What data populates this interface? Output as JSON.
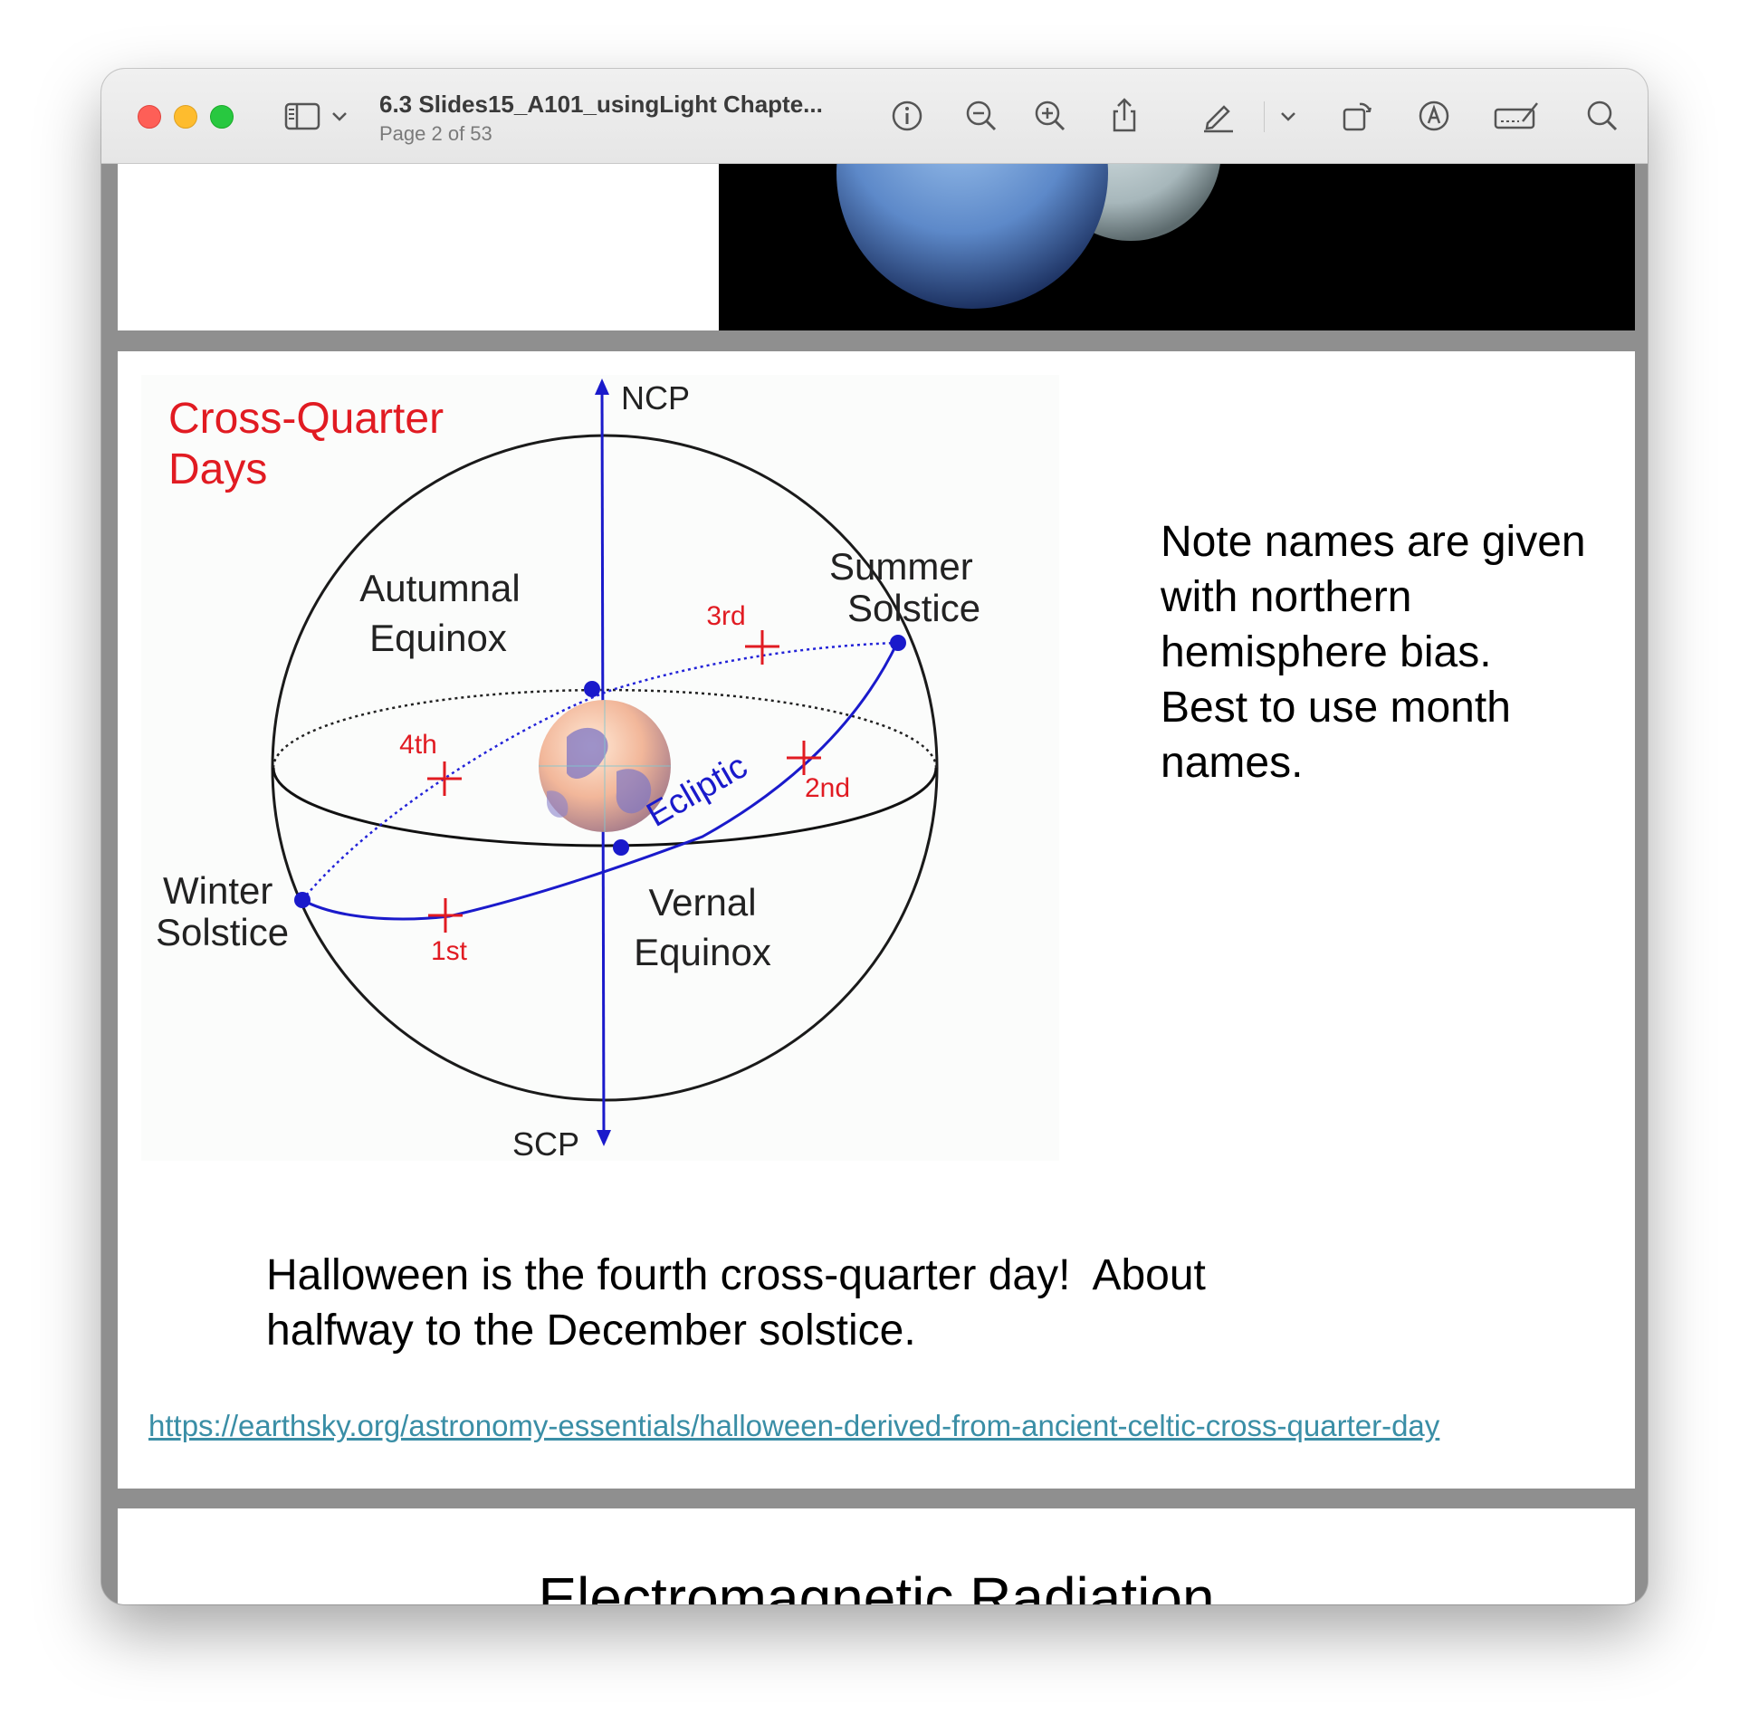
{
  "window": {
    "title": "6.3 Slides15_A101_usingLight Chapte...",
    "page_indicator": "Page 2 of 53"
  },
  "toolbar": {
    "icons": [
      "sidebar-icon",
      "chevron-down-icon",
      "info-icon",
      "zoom-out-icon",
      "zoom-in-icon",
      "share-icon",
      "pencil-icon",
      "chevron-down-icon",
      "rotate-icon",
      "markup-icon",
      "signature-icon",
      "search-icon"
    ]
  },
  "slide": {
    "diagram": {
      "title_line1": "Cross-Quarter",
      "title_line2": "Days",
      "ncp": "NCP",
      "scp": "SCP",
      "autumnal_line1": "Autumnal",
      "autumnal_line2": "Equinox",
      "summer_line1": "Summer",
      "summer_line2": "Solstice",
      "winter_line1": "Winter",
      "winter_line2": "Solstice",
      "vernal_line1": "Vernal",
      "vernal_line2": "Equinox",
      "ecliptic": "Ecliptic",
      "cq1": "1st",
      "cq2": "2nd",
      "cq3": "3rd",
      "cq4": "4th",
      "colors": {
        "red": "#e11b22",
        "blue": "#1a1acb"
      }
    },
    "note": "Note names are given with northern hemisphere bias. Best to use month names.",
    "caption_line1": "Halloween is the fourth cross-quarter day!  About",
    "caption_line2": "halfway to the December solstice.",
    "link": "https://earthsky.org/astronomy-essentials/halloween-derived-from-ancient-celtic-cross-quarter-day"
  },
  "next_slide": {
    "title": "Electromagnetic Radiation"
  }
}
